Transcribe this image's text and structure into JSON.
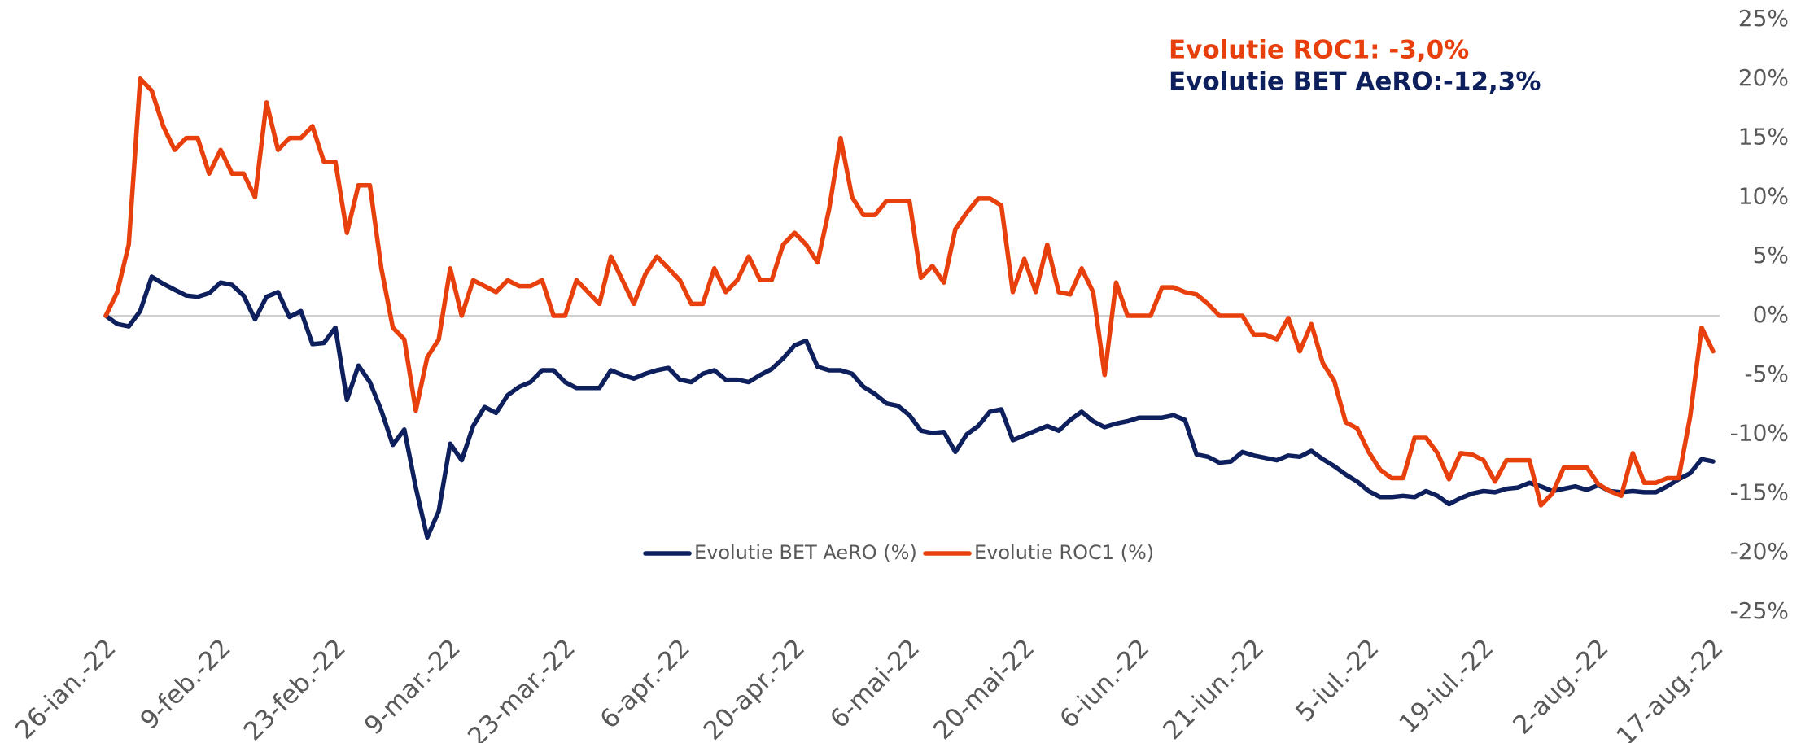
{
  "chart_data": {
    "type": "line",
    "annotations": [
      {
        "text": "Evolutie ROC1: -3,0%",
        "color": "#e8400c"
      },
      {
        "text": "Evolutie BET AeRO:-12,3%",
        "color": "#0d1f5c"
      }
    ],
    "categories": [
      "26-ian.-22",
      null,
      null,
      null,
      null,
      null,
      null,
      null,
      null,
      null,
      "9-feb.-22",
      null,
      null,
      null,
      null,
      null,
      null,
      null,
      null,
      null,
      "23-feb.-22",
      null,
      null,
      null,
      null,
      null,
      null,
      null,
      null,
      null,
      "9-mar.-22",
      null,
      null,
      null,
      null,
      null,
      null,
      null,
      null,
      null,
      "23-mar.-22",
      null,
      null,
      null,
      null,
      null,
      null,
      null,
      null,
      null,
      "6-apr.-22",
      null,
      null,
      null,
      null,
      null,
      null,
      null,
      null,
      null,
      "20-apr.-22",
      null,
      null,
      null,
      null,
      null,
      null,
      null,
      null,
      null,
      "6-mai-22",
      null,
      null,
      null,
      null,
      null,
      null,
      null,
      null,
      null,
      "20-mai-22",
      null,
      null,
      null,
      null,
      null,
      null,
      null,
      null,
      null,
      "6-iun.-22",
      null,
      null,
      null,
      null,
      null,
      null,
      null,
      null,
      null,
      "21-iun.-22",
      null,
      null,
      null,
      null,
      null,
      null,
      null,
      null,
      null,
      "5-iul.-22",
      null,
      null,
      null,
      null,
      null,
      null,
      null,
      null,
      null,
      "19-iul.-22",
      null,
      null,
      null,
      null,
      null,
      null,
      null,
      null,
      null,
      "2-aug.-22",
      null,
      null,
      null,
      null,
      null,
      null,
      null,
      null,
      null,
      "17-aug.-22"
    ],
    "series": [
      {
        "name": "Evolutie BET AeRO (%)",
        "color": "#0d1f5c",
        "values": [
          0,
          -0.7,
          -0.9,
          0.4,
          3.3,
          2.7,
          2.2,
          1.7,
          1.6,
          1.9,
          2.8,
          2.6,
          1.7,
          -0.3,
          1.6,
          2,
          -0.1,
          0.4,
          -2.4,
          -2.3,
          -1,
          -7.1,
          -4.2,
          -5.6,
          -8,
          -10.9,
          -9.6,
          -14.5,
          -18.7,
          -16.5,
          -10.8,
          -12.2,
          -9.3,
          -7.7,
          -8.2,
          -6.7,
          -6,
          -5.6,
          -4.6,
          -4.6,
          -5.6,
          -6.1,
          -6.1,
          -6.1,
          -4.6,
          -5,
          -5.3,
          -4.9,
          -4.6,
          -4.4,
          -5.4,
          -5.6,
          -4.9,
          -4.6,
          -5.4,
          -5.4,
          -5.6,
          -5,
          -4.5,
          -3.6,
          -2.5,
          -2.1,
          -4.3,
          -4.6,
          -4.6,
          -4.9,
          -6,
          -6.6,
          -7.4,
          -7.6,
          -8.4,
          -9.7,
          -9.9,
          -9.8,
          -11.5,
          -10,
          -9.3,
          -8.1,
          -7.9,
          -10.5,
          -10.1,
          -9.7,
          -9.3,
          -9.7,
          -8.8,
          -8.1,
          -8.9,
          -9.4,
          -9.1,
          -8.9,
          -8.6,
          -8.6,
          -8.6,
          -8.4,
          -8.8,
          -11.7,
          -11.9,
          -12.4,
          -12.3,
          -11.5,
          -11.8,
          -12,
          -12.2,
          -11.8,
          -11.9,
          -11.4,
          -12.1,
          -12.7,
          -13.4,
          -14,
          -14.8,
          -15.3,
          -15.3,
          -15.2,
          -15.3,
          -14.8,
          -15.2,
          -15.9,
          -15.4,
          -15,
          -14.8,
          -14.9,
          -14.6,
          -14.5,
          -14.1,
          -14.4,
          -14.8,
          -14.6,
          -14.4,
          -14.7,
          -14.3,
          -14.8,
          -14.9,
          -14.8,
          -14.9,
          -14.9,
          -14.4,
          -13.8,
          -13.3,
          -12.1,
          -12.3
        ]
      },
      {
        "name": "Evolutie ROC1 (%)",
        "color": "#e8400c",
        "values": [
          0,
          2,
          6,
          20,
          19,
          16,
          14,
          15,
          15,
          12,
          14,
          12,
          12,
          10,
          18,
          14,
          15,
          15,
          16,
          13,
          13,
          7,
          11,
          11,
          4,
          -1,
          -2,
          -8,
          -3.5,
          -2,
          4,
          0,
          3,
          2.5,
          2,
          3,
          2.5,
          2.5,
          3,
          0,
          0,
          3,
          2,
          1,
          5,
          3,
          1,
          3.5,
          5,
          4,
          3,
          1,
          1,
          4,
          2,
          3,
          5,
          3,
          3,
          6,
          7,
          6,
          4.5,
          9,
          15,
          10,
          8.5,
          8.5,
          9.7,
          9.7,
          9.7,
          3.2,
          4.2,
          2.8,
          7.3,
          8.7,
          9.9,
          9.9,
          9.3,
          2,
          4.8,
          2,
          6,
          2,
          1.8,
          4,
          2,
          -5,
          2.8,
          0,
          0,
          0,
          2.4,
          2.4,
          2,
          1.8,
          1,
          0,
          0,
          0,
          -1.6,
          -1.6,
          -2,
          -0.2,
          -3,
          -0.7,
          -4,
          -5.5,
          -9,
          -9.5,
          -11.5,
          -13,
          -13.7,
          -13.7,
          -10.3,
          -10.3,
          -11.6,
          -13.8,
          -11.6,
          -11.7,
          -12.2,
          -14,
          -12.2,
          -12.2,
          -12.2,
          -16,
          -15,
          -12.8,
          -12.8,
          -12.8,
          -14.2,
          -14.8,
          -15.2,
          -11.6,
          -14.1,
          -14.1,
          -13.7,
          -13.7,
          -8.5,
          -1,
          -3
        ]
      }
    ],
    "ylim": [
      -25,
      25
    ],
    "yticks": [
      {
        "value": 25,
        "label": "25%"
      },
      {
        "value": 20,
        "label": "20%"
      },
      {
        "value": 15,
        "label": "15%"
      },
      {
        "value": 10,
        "label": "10%"
      },
      {
        "value": 5,
        "label": "5%"
      },
      {
        "value": 0,
        "label": "0%"
      },
      {
        "value": -5,
        "label": "-5%"
      },
      {
        "value": -10,
        "label": "-10%"
      },
      {
        "value": -15,
        "label": "-15%"
      },
      {
        "value": -20,
        "label": "-20%"
      },
      {
        "value": -25,
        "label": "-25%"
      }
    ],
    "y_axis_side": "right",
    "grid": false,
    "zero_line": true,
    "legend": "bottom"
  }
}
